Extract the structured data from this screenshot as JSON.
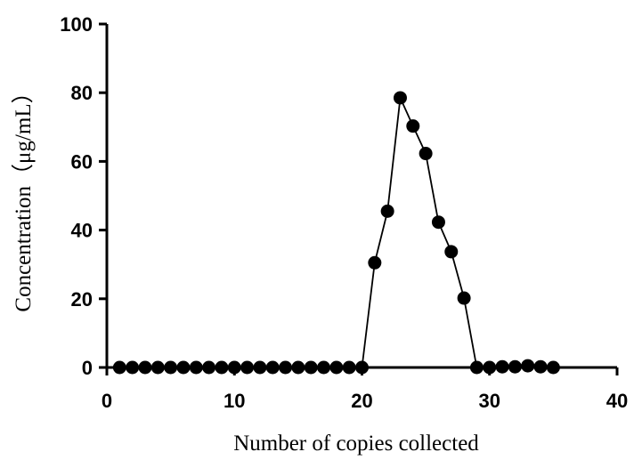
{
  "chart_data": {
    "type": "line",
    "title": "",
    "xlabel": "Number of copies collected",
    "ylabel": "Concentration（μg/mL）",
    "xlim": [
      0,
      40
    ],
    "ylim": [
      0,
      100
    ],
    "xticks": [
      0,
      10,
      20,
      30,
      40
    ],
    "yticks": [
      0,
      20,
      40,
      60,
      80,
      100
    ],
    "grid": false,
    "marker": "filled-circle",
    "colors": {
      "line": "#000000",
      "marker": "#000000"
    },
    "series": [
      {
        "x": [
          1,
          2,
          3,
          4,
          5,
          6,
          7,
          8,
          9,
          10,
          11,
          12,
          13,
          14,
          15,
          16,
          17,
          18,
          19,
          20,
          21,
          22,
          23,
          24,
          25,
          26,
          27,
          28,
          29,
          30,
          31,
          32,
          33,
          34,
          35
        ],
        "y": [
          0,
          0,
          0,
          0,
          0,
          0,
          0,
          0,
          0,
          0,
          0,
          0,
          0,
          0,
          0,
          0,
          0,
          0,
          0,
          0,
          30.5,
          45.5,
          78.5,
          70.3,
          62.3,
          42.3,
          33.7,
          20.2,
          0,
          0,
          0.2,
          0.2,
          0.5,
          0.2,
          0
        ]
      }
    ]
  }
}
